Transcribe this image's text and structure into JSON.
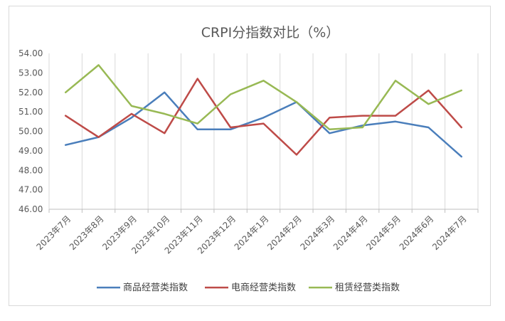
{
  "chart_data": {
    "type": "line",
    "title": "CRPI分指数对比（%）",
    "categories": [
      "2023年7月",
      "2023年8月",
      "2023年9月",
      "2023年10月",
      "2023年11月",
      "2023年12月",
      "2024年1月",
      "2024年2月",
      "2024年3月",
      "2024年4月",
      "2024年5月",
      "2024年6月",
      "2024年7月"
    ],
    "ylim": [
      46,
      54
    ],
    "yticks": [
      "46.00",
      "47.00",
      "48.00",
      "49.00",
      "50.00",
      "51.00",
      "52.00",
      "53.00",
      "54.00"
    ],
    "grid": "vertical",
    "legend_position": "bottom",
    "series": [
      {
        "name": "商品经营类指数",
        "color": "#4a7ebb",
        "values": [
          49.3,
          49.7,
          50.7,
          52.0,
          50.1,
          50.1,
          50.7,
          51.5,
          49.9,
          50.3,
          50.5,
          50.2,
          48.7
        ]
      },
      {
        "name": "电商经营类指数",
        "color": "#be4b48",
        "values": [
          50.8,
          49.7,
          50.9,
          49.9,
          52.7,
          50.2,
          50.4,
          48.8,
          50.7,
          50.8,
          50.8,
          52.1,
          50.2
        ]
      },
      {
        "name": "租赁经营类指数",
        "color": "#98b954",
        "values": [
          52.0,
          53.4,
          51.3,
          50.9,
          50.4,
          51.9,
          52.6,
          51.5,
          50.1,
          50.2,
          52.6,
          51.4,
          52.1
        ]
      }
    ]
  }
}
